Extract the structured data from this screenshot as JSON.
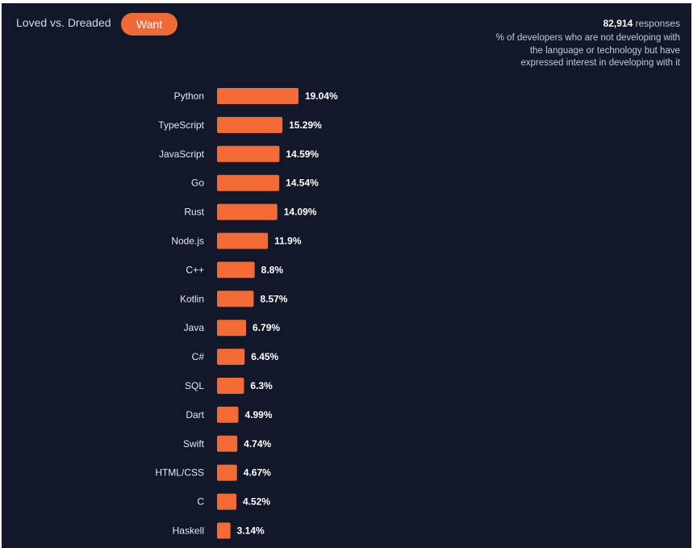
{
  "tabs": {
    "loved_label": "Loved vs. Dreaded",
    "want_label": "Want"
  },
  "header": {
    "responses_count": "82,914",
    "responses_word": "responses",
    "description": "% of developers who are not developing with the language or technology but have expressed interest in developing with it"
  },
  "colors": {
    "background": "#121729",
    "bar": "#f26b36",
    "accent": "#f06a37"
  },
  "chart_data": {
    "type": "bar",
    "orientation": "horizontal",
    "categories": [
      "Python",
      "TypeScript",
      "JavaScript",
      "Go",
      "Rust",
      "Node.js",
      "C++",
      "Kotlin",
      "Java",
      "C#",
      "SQL",
      "Dart",
      "Swift",
      "HTML/CSS",
      "C",
      "Haskell"
    ],
    "values": [
      19.04,
      15.29,
      14.59,
      14.54,
      14.09,
      11.9,
      8.8,
      8.57,
      6.79,
      6.45,
      6.3,
      4.99,
      4.74,
      4.67,
      4.52,
      3.14
    ],
    "value_labels": [
      "19.04%",
      "15.29%",
      "14.59%",
      "14.54%",
      "14.09%",
      "11.9%",
      "8.8%",
      "8.57%",
      "6.79%",
      "6.45%",
      "6.3%",
      "4.99%",
      "4.74%",
      "4.67%",
      "4.52%",
      "3.14%"
    ],
    "grid": false,
    "legend": "none"
  }
}
